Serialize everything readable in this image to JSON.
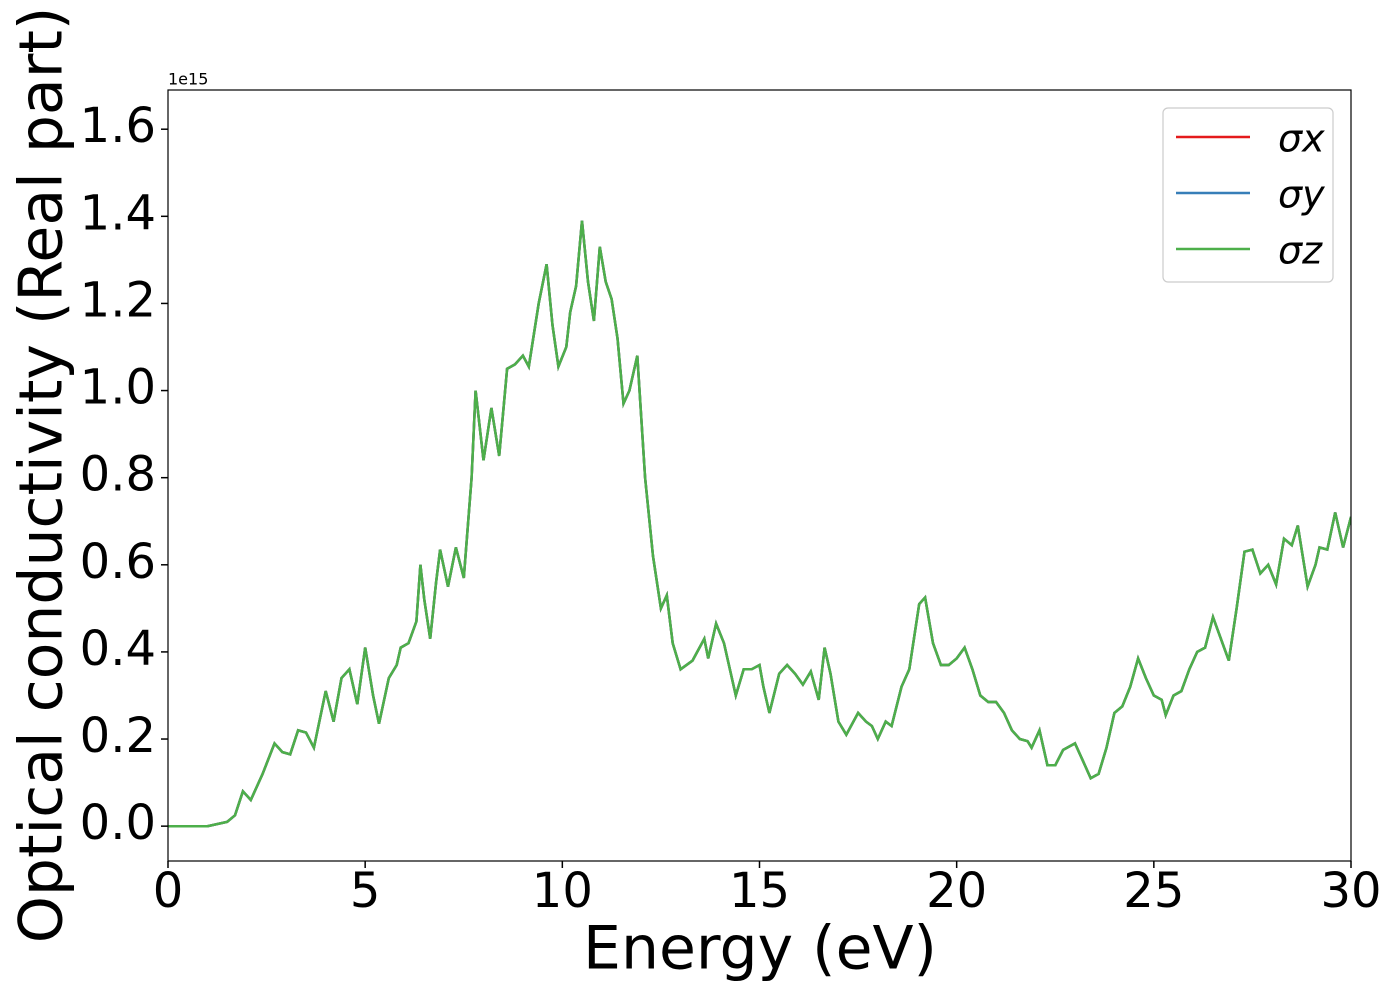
{
  "chart_data": {
    "type": "line",
    "xlabel": "Energy (eV)",
    "ylabel": "Optical conductivity (Real part)",
    "y_offset_label": "1e15",
    "x": [
      0,
      1.0,
      1.5,
      1.7,
      1.9,
      2.1,
      2.4,
      2.7,
      2.9,
      3.1,
      3.3,
      3.5,
      3.7,
      4.0,
      4.2,
      4.4,
      4.6,
      4.8,
      5.0,
      5.2,
      5.35,
      5.6,
      5.8,
      5.9,
      6.1,
      6.3,
      6.4,
      6.5,
      6.65,
      6.8,
      6.9,
      7.1,
      7.3,
      7.5,
      7.7,
      7.8,
      8.0,
      8.2,
      8.4,
      8.6,
      8.8,
      9.0,
      9.15,
      9.4,
      9.6,
      9.75,
      9.9,
      10.1,
      10.2,
      10.35,
      10.5,
      10.65,
      10.8,
      10.95,
      11.1,
      11.25,
      11.4,
      11.55,
      11.7,
      11.9,
      12.1,
      12.3,
      12.5,
      12.65,
      12.8,
      13.0,
      13.3,
      13.6,
      13.7,
      13.9,
      14.1,
      14.4,
      14.6,
      14.8,
      15.0,
      15.1,
      15.25,
      15.5,
      15.7,
      15.9,
      16.1,
      16.3,
      16.5,
      16.65,
      16.8,
      17.0,
      17.2,
      17.5,
      17.7,
      17.85,
      18.0,
      18.2,
      18.35,
      18.6,
      18.8,
      19.05,
      19.2,
      19.4,
      19.6,
      19.8,
      20.0,
      20.2,
      20.4,
      20.6,
      20.8,
      21.0,
      21.2,
      21.4,
      21.6,
      21.8,
      21.9,
      22.1,
      22.3,
      22.5,
      22.7,
      23.0,
      23.2,
      23.4,
      23.6,
      23.8,
      24.0,
      24.2,
      24.4,
      24.6,
      24.8,
      25.0,
      25.2,
      25.3,
      25.5,
      25.7,
      25.9,
      26.1,
      26.3,
      26.5,
      26.7,
      26.9,
      27.1,
      27.3,
      27.5,
      27.7,
      27.9,
      28.1,
      28.3,
      28.5,
      28.65,
      28.9,
      29.1,
      29.2,
      29.4,
      29.6,
      29.8,
      30.0
    ],
    "series": [
      {
        "name": "σx",
        "color": "#e41a1c",
        "values": [
          0,
          0,
          0.01,
          0.025,
          0.08,
          0.06,
          0.12,
          0.19,
          0.17,
          0.165,
          0.22,
          0.215,
          0.18,
          0.31,
          0.24,
          0.34,
          0.36,
          0.28,
          0.41,
          0.3,
          0.235,
          0.34,
          0.37,
          0.41,
          0.42,
          0.47,
          0.6,
          0.52,
          0.43,
          0.56,
          0.635,
          0.55,
          0.64,
          0.57,
          0.8,
          1.0,
          0.84,
          0.96,
          0.85,
          1.05,
          1.06,
          1.08,
          1.055,
          1.2,
          1.29,
          1.15,
          1.055,
          1.1,
          1.18,
          1.24,
          1.39,
          1.25,
          1.16,
          1.33,
          1.25,
          1.21,
          1.12,
          0.97,
          1.0,
          1.08,
          0.8,
          0.62,
          0.5,
          0.53,
          0.42,
          0.36,
          0.38,
          0.43,
          0.385,
          0.465,
          0.42,
          0.3,
          0.36,
          0.36,
          0.37,
          0.32,
          0.26,
          0.35,
          0.37,
          0.35,
          0.325,
          0.355,
          0.29,
          0.41,
          0.35,
          0.24,
          0.21,
          0.26,
          0.24,
          0.23,
          0.2,
          0.24,
          0.23,
          0.32,
          0.36,
          0.51,
          0.525,
          0.42,
          0.37,
          0.37,
          0.385,
          0.41,
          0.36,
          0.3,
          0.285,
          0.285,
          0.26,
          0.22,
          0.2,
          0.195,
          0.18,
          0.22,
          0.14,
          0.14,
          0.175,
          0.19,
          0.15,
          0.11,
          0.12,
          0.18,
          0.26,
          0.275,
          0.32,
          0.385,
          0.34,
          0.3,
          0.29,
          0.255,
          0.3,
          0.31,
          0.36,
          0.4,
          0.41,
          0.48,
          0.43,
          0.38,
          0.5,
          0.63,
          0.635,
          0.58,
          0.6,
          0.555,
          0.66,
          0.645,
          0.69,
          0.55,
          0.6,
          0.64,
          0.635,
          0.72,
          0.64,
          0.71
        ]
      },
      {
        "name": "σy",
        "color": "#377eb8",
        "values": [
          0,
          0,
          0.01,
          0.025,
          0.08,
          0.06,
          0.12,
          0.19,
          0.17,
          0.165,
          0.22,
          0.215,
          0.18,
          0.31,
          0.24,
          0.34,
          0.36,
          0.28,
          0.41,
          0.3,
          0.235,
          0.34,
          0.37,
          0.41,
          0.42,
          0.47,
          0.6,
          0.52,
          0.43,
          0.56,
          0.635,
          0.55,
          0.64,
          0.57,
          0.8,
          1.0,
          0.84,
          0.96,
          0.85,
          1.05,
          1.06,
          1.08,
          1.055,
          1.2,
          1.29,
          1.15,
          1.055,
          1.1,
          1.18,
          1.24,
          1.39,
          1.25,
          1.16,
          1.33,
          1.25,
          1.21,
          1.12,
          0.97,
          1.0,
          1.08,
          0.8,
          0.62,
          0.5,
          0.53,
          0.42,
          0.36,
          0.38,
          0.43,
          0.385,
          0.465,
          0.42,
          0.3,
          0.36,
          0.36,
          0.37,
          0.32,
          0.26,
          0.35,
          0.37,
          0.35,
          0.325,
          0.355,
          0.29,
          0.41,
          0.35,
          0.24,
          0.21,
          0.26,
          0.24,
          0.23,
          0.2,
          0.24,
          0.23,
          0.32,
          0.36,
          0.51,
          0.525,
          0.42,
          0.37,
          0.37,
          0.385,
          0.41,
          0.36,
          0.3,
          0.285,
          0.285,
          0.26,
          0.22,
          0.2,
          0.195,
          0.18,
          0.22,
          0.14,
          0.14,
          0.175,
          0.19,
          0.15,
          0.11,
          0.12,
          0.18,
          0.26,
          0.275,
          0.32,
          0.385,
          0.34,
          0.3,
          0.29,
          0.255,
          0.3,
          0.31,
          0.36,
          0.4,
          0.41,
          0.48,
          0.43,
          0.38,
          0.5,
          0.63,
          0.635,
          0.58,
          0.6,
          0.555,
          0.66,
          0.645,
          0.69,
          0.55,
          0.6,
          0.64,
          0.635,
          0.72,
          0.64,
          0.71
        ]
      },
      {
        "name": "σz",
        "color": "#4daf4a",
        "values": [
          0,
          0,
          0.01,
          0.025,
          0.08,
          0.06,
          0.12,
          0.19,
          0.17,
          0.165,
          0.22,
          0.215,
          0.18,
          0.31,
          0.24,
          0.34,
          0.36,
          0.28,
          0.41,
          0.3,
          0.235,
          0.34,
          0.37,
          0.41,
          0.42,
          0.47,
          0.6,
          0.52,
          0.43,
          0.56,
          0.635,
          0.55,
          0.64,
          0.57,
          0.8,
          1.0,
          0.84,
          0.96,
          0.85,
          1.05,
          1.06,
          1.08,
          1.055,
          1.2,
          1.29,
          1.15,
          1.055,
          1.1,
          1.18,
          1.24,
          1.39,
          1.25,
          1.16,
          1.33,
          1.25,
          1.21,
          1.12,
          0.97,
          1.0,
          1.08,
          0.8,
          0.62,
          0.5,
          0.53,
          0.42,
          0.36,
          0.38,
          0.43,
          0.385,
          0.465,
          0.42,
          0.3,
          0.36,
          0.36,
          0.37,
          0.32,
          0.26,
          0.35,
          0.37,
          0.35,
          0.325,
          0.355,
          0.29,
          0.41,
          0.35,
          0.24,
          0.21,
          0.26,
          0.24,
          0.23,
          0.2,
          0.24,
          0.23,
          0.32,
          0.36,
          0.51,
          0.525,
          0.42,
          0.37,
          0.37,
          0.385,
          0.41,
          0.36,
          0.3,
          0.285,
          0.285,
          0.26,
          0.22,
          0.2,
          0.195,
          0.18,
          0.22,
          0.14,
          0.14,
          0.175,
          0.19,
          0.15,
          0.11,
          0.12,
          0.18,
          0.26,
          0.275,
          0.32,
          0.385,
          0.34,
          0.3,
          0.29,
          0.255,
          0.3,
          0.31,
          0.36,
          0.4,
          0.41,
          0.48,
          0.43,
          0.38,
          0.5,
          0.63,
          0.635,
          0.58,
          0.6,
          0.555,
          0.66,
          0.645,
          0.69,
          0.55,
          0.6,
          0.64,
          0.635,
          0.72,
          0.64,
          0.71
        ]
      }
    ],
    "xlim": [
      0,
      30
    ],
    "xticks": [
      0,
      5,
      10,
      15,
      20,
      25,
      30
    ],
    "ylim": [
      -0.08,
      1.69
    ],
    "yticks": [
      {
        "value": 0,
        "label": "0.0"
      },
      {
        "value": 0.2,
        "label": "0.2"
      },
      {
        "value": 0.4,
        "label": "0.4"
      },
      {
        "value": 0.6,
        "label": "0.6"
      },
      {
        "value": 0.8,
        "label": "0.8"
      },
      {
        "value": 1.0,
        "label": "1.0"
      },
      {
        "value": 1.2,
        "label": "1.2"
      },
      {
        "value": 1.4,
        "label": "1.4"
      },
      {
        "value": 1.6,
        "label": "1.6"
      }
    ],
    "legend": "upper right",
    "grid": false
  }
}
